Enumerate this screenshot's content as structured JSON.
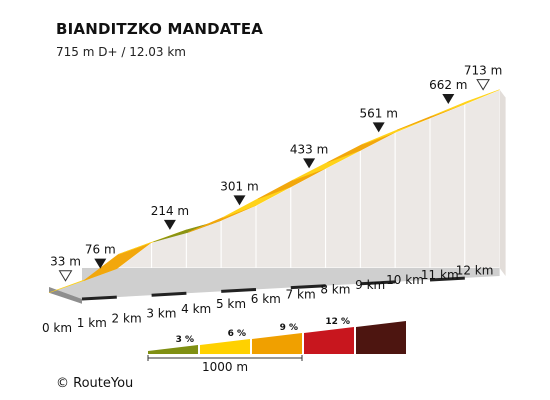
{
  "header": {
    "title": "BIANDITZKO MANDATEA",
    "subtitle": "715 m D+ / 12.03 km"
  },
  "footer": {
    "credit": "© RouteYou"
  },
  "chart_data": {
    "type": "area",
    "title": "BIANDITZKO MANDATEA",
    "subtitle": "715 m D+ / 12.03 km",
    "x_unit": "km",
    "y_unit": "m",
    "x_ticks": [
      "0 km",
      "1 km",
      "2 km",
      "3 km",
      "4 km",
      "5 km",
      "6 km",
      "7 km",
      "8 km",
      "9 km",
      "10 km",
      "11 km",
      "12 km"
    ],
    "elevation_points": [
      {
        "km": 0.0,
        "m": 33
      },
      {
        "km": 1.0,
        "m": 76
      },
      {
        "km": 2.0,
        "m": 170
      },
      {
        "km": 3.0,
        "m": 214
      },
      {
        "km": 4.0,
        "m": 248
      },
      {
        "km": 5.0,
        "m": 301
      },
      {
        "km": 6.0,
        "m": 367
      },
      {
        "km": 7.0,
        "m": 433
      },
      {
        "km": 8.0,
        "m": 497
      },
      {
        "km": 9.0,
        "m": 561
      },
      {
        "km": 10.0,
        "m": 612
      },
      {
        "km": 11.0,
        "m": 662
      },
      {
        "km": 12.0,
        "m": 713
      }
    ],
    "segments": [
      {
        "from_km": 0,
        "to_km": 1,
        "gradient_class": "yellow"
      },
      {
        "from_km": 1,
        "to_km": 2,
        "gradient_class": "orange"
      },
      {
        "from_km": 2,
        "to_km": 3,
        "gradient_class": "yellow"
      },
      {
        "from_km": 3,
        "to_km": 4,
        "gradient_class": "green"
      },
      {
        "from_km": 4,
        "to_km": 5,
        "gradient_class": "orange"
      },
      {
        "from_km": 5,
        "to_km": 6,
        "gradient_class": "yellow"
      },
      {
        "from_km": 6,
        "to_km": 7,
        "gradient_class": "orange"
      },
      {
        "from_km": 7,
        "to_km": 8,
        "gradient_class": "yellow"
      },
      {
        "from_km": 8,
        "to_km": 9,
        "gradient_class": "orange"
      },
      {
        "from_km": 9,
        "to_km": 10,
        "gradient_class": "yellow"
      },
      {
        "from_km": 10,
        "to_km": 11,
        "gradient_class": "orange"
      },
      {
        "from_km": 11,
        "to_km": 12,
        "gradient_class": "yellow"
      }
    ],
    "markers": [
      {
        "km": 0,
        "label": "33 m",
        "style": "hollow"
      },
      {
        "km": 1,
        "label": "76 m",
        "style": "solid"
      },
      {
        "km": 3,
        "label": "214 m",
        "style": "solid"
      },
      {
        "km": 5,
        "label": "301 m",
        "style": "solid"
      },
      {
        "km": 7,
        "label": "433 m",
        "style": "solid"
      },
      {
        "km": 9,
        "label": "561 m",
        "style": "solid"
      },
      {
        "km": 11,
        "label": "662 m",
        "style": "solid"
      },
      {
        "km": 12,
        "label": "713 m",
        "style": "hollow"
      }
    ],
    "legend": {
      "items": [
        {
          "label": "3 %",
          "color": "#7f8f12"
        },
        {
          "label": "6 %",
          "color": "#ffd100"
        },
        {
          "label": "9 %",
          "color": "#f0a000"
        },
        {
          "label": "12 %",
          "color": "#c8161e"
        },
        {
          "label": "",
          "color": "#4d1510"
        }
      ],
      "scale_label": "1000 m"
    },
    "colors": {
      "yellow": "#ffd31a",
      "orange": "#f2a70c",
      "green": "#8a9413",
      "side_wall": "#ece8e5",
      "base": "#cfcfcf"
    }
  }
}
